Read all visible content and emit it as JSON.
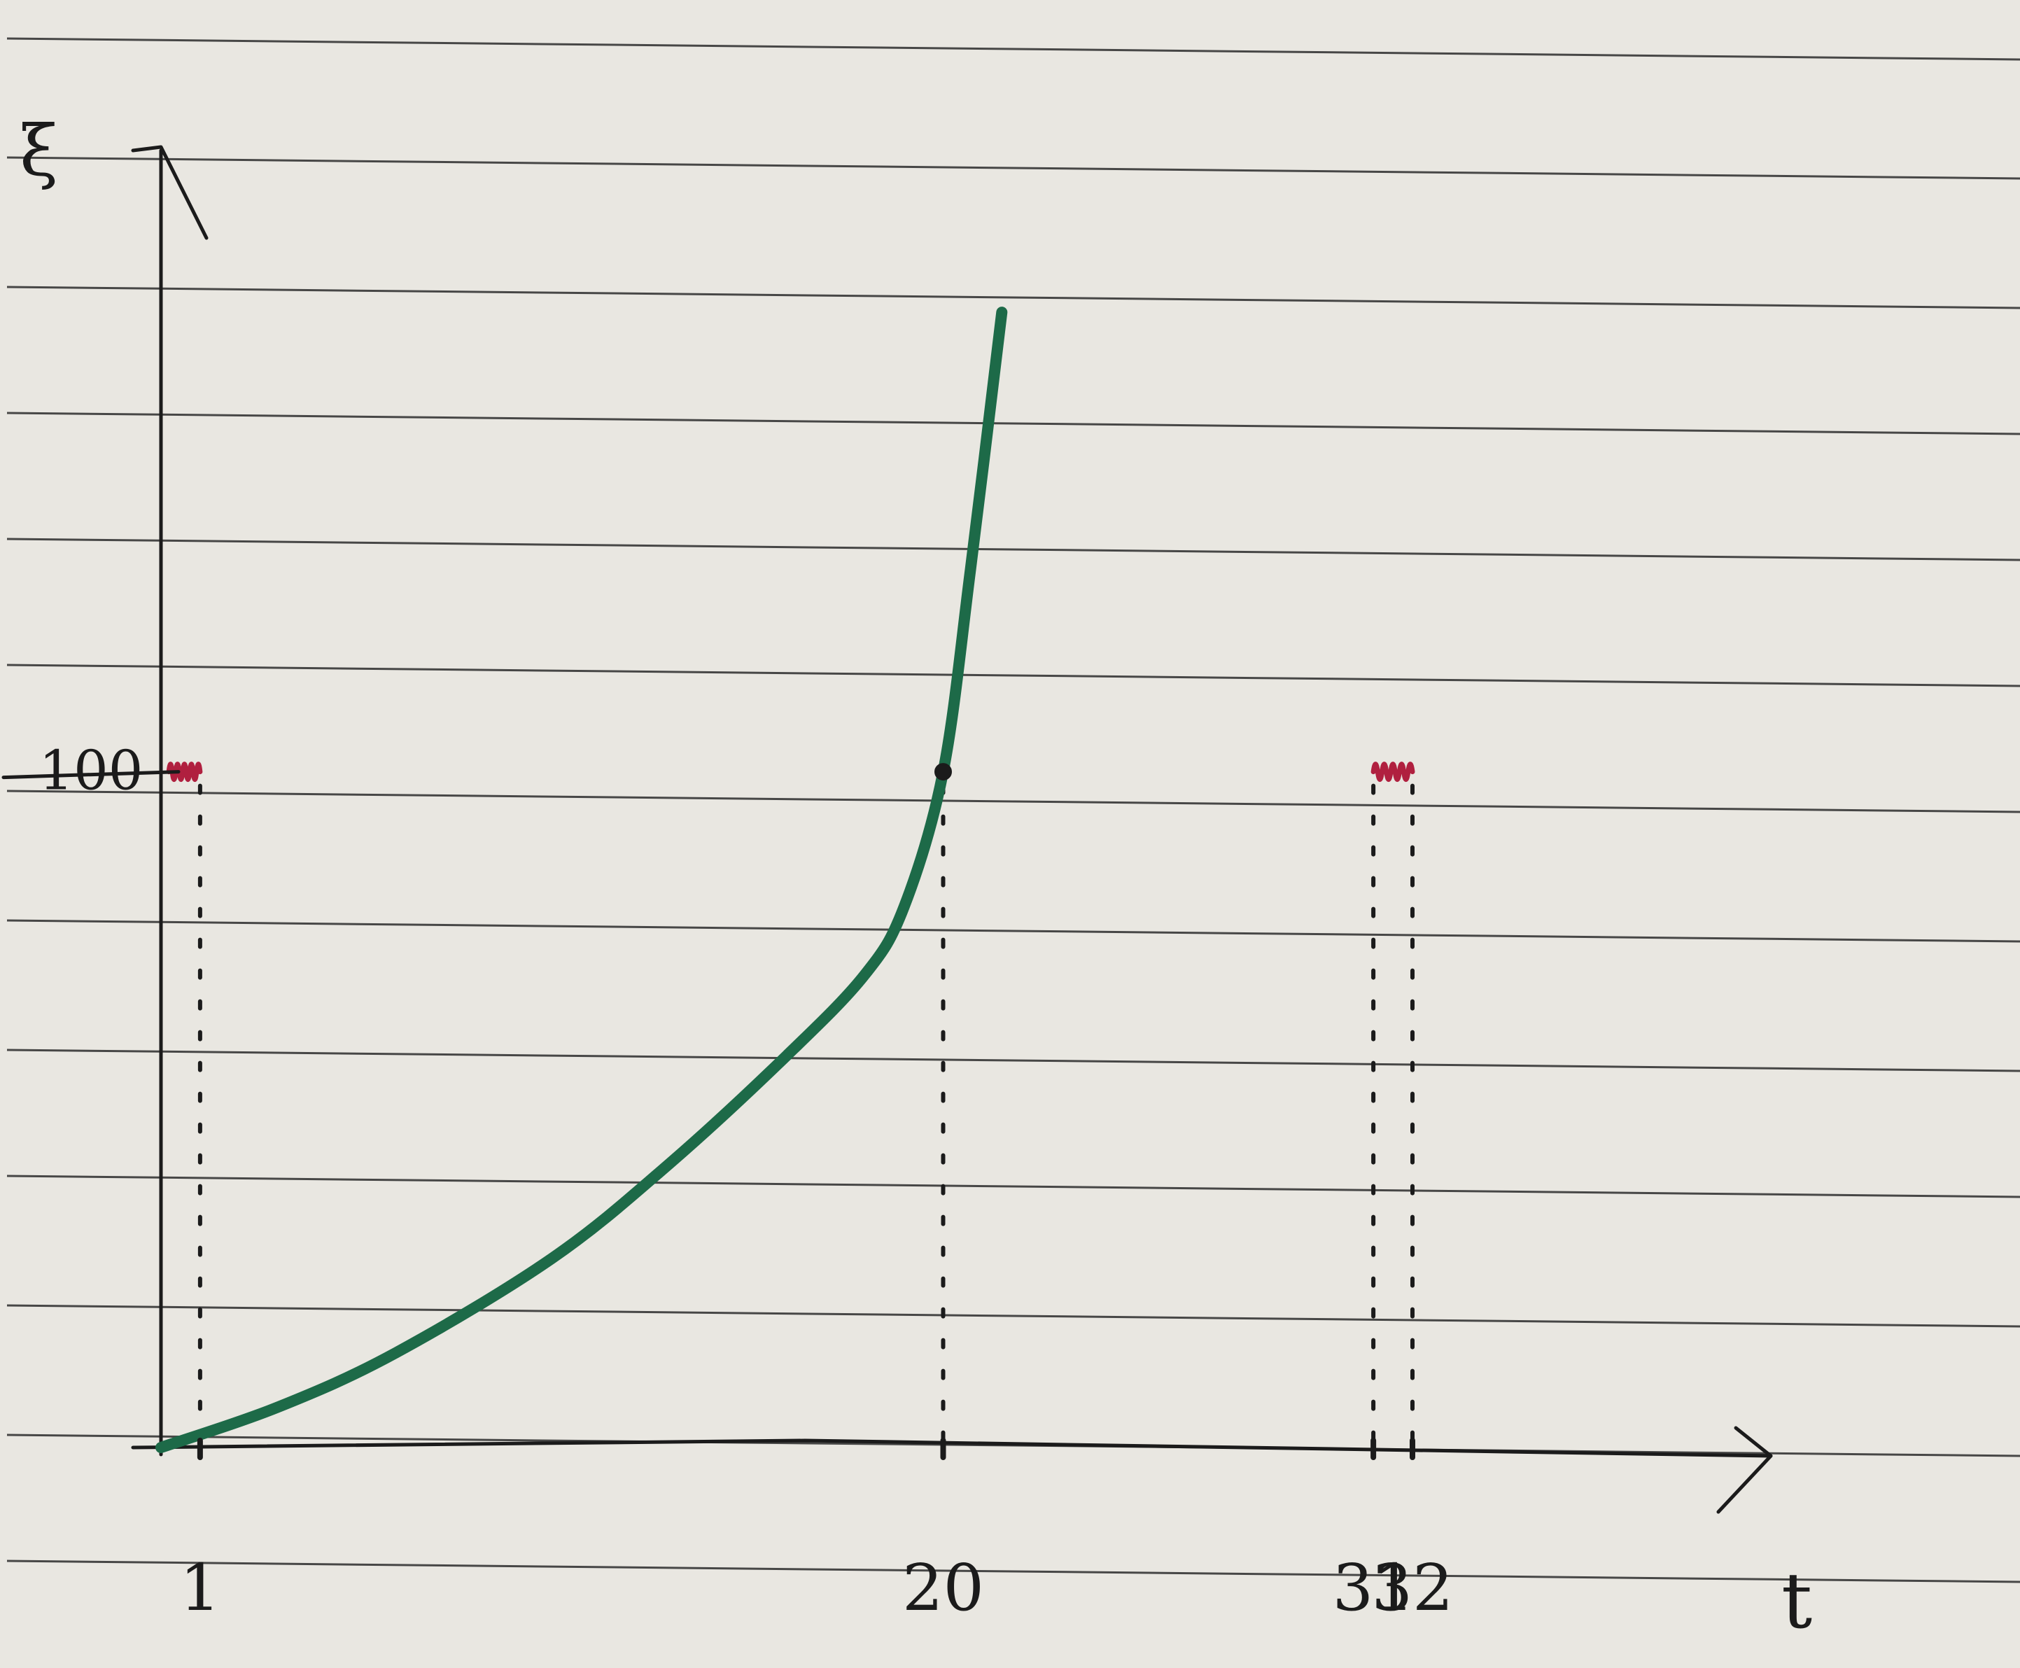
{
  "colors": {
    "paper": "#e9e7e1",
    "ruling": "#2a2a2a",
    "ink": "#1b1b1b",
    "curve": "#1d6a48",
    "squiggle": "#b0203f"
  },
  "chart_data": {
    "type": "line",
    "title": "",
    "xlabel": "t",
    "ylabel": "ξ",
    "xlim": [
      0,
      40
    ],
    "ylim": [
      0,
      185
    ],
    "grid": false,
    "x_ticks": [
      {
        "value": 1,
        "label": "1"
      },
      {
        "value": 20,
        "label": "20"
      },
      {
        "value": 31,
        "label": "31"
      },
      {
        "value": 32,
        "label": "32"
      }
    ],
    "y_ticks": [
      {
        "value": 100,
        "label": "100"
      }
    ],
    "series": [
      {
        "style": "curve",
        "points": [
          [
            0,
            0
          ],
          [
            3,
            6
          ],
          [
            6,
            14
          ],
          [
            10,
            28
          ],
          [
            13,
            42
          ],
          [
            16,
            58
          ],
          [
            18,
            70
          ],
          [
            19,
            80
          ],
          [
            20,
            100
          ],
          [
            20.7,
            130
          ],
          [
            21.5,
            168
          ]
        ]
      },
      {
        "style": "squiggle",
        "points": [
          [
            0.2,
            100
          ],
          [
            1,
            100
          ]
        ]
      },
      {
        "style": "squiggle",
        "points": [
          [
            31,
            100
          ],
          [
            32,
            100
          ]
        ]
      }
    ],
    "markers": [
      [
        20,
        100
      ]
    ],
    "vertical_guides": [
      1,
      20,
      31,
      32
    ]
  }
}
